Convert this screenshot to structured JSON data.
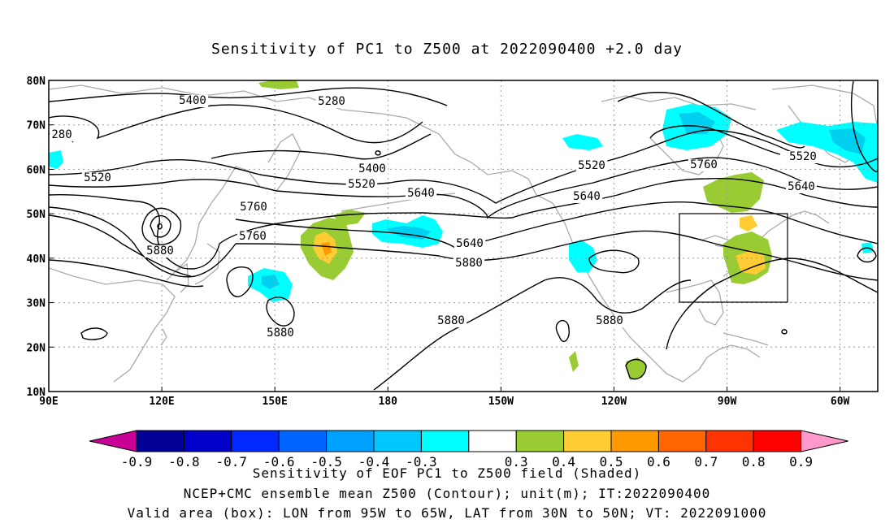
{
  "title": "Sensitivity of PC1 to Z500 at 2022090400 +2.0 day",
  "map": {
    "lon_range": [
      90,
      310
    ],
    "lat_range": [
      10,
      80
    ],
    "x_ticks": [
      "90E",
      "120E",
      "150E",
      "180",
      "150W",
      "120W",
      "90W",
      "60W"
    ],
    "y_ticks": [
      "80N",
      "70N",
      "60N",
      "50N",
      "40N",
      "30N",
      "20N",
      "10N"
    ],
    "grid": "dotted",
    "valid_box": {
      "lon_w": "95W",
      "lon_e": "65W",
      "lat_s": "30N",
      "lat_n": "50N"
    },
    "contour_labels": [
      "5400",
      "5280",
      "280",
      "5520",
      "5400",
      "5520",
      "5640",
      "5520",
      "5760",
      "5640",
      "5760",
      "5880",
      "5640",
      "5760",
      "5880",
      "5880",
      "5880",
      "5880"
    ],
    "colors": {
      "negative_dark": "#00ffff",
      "negative_light": "#00d0f0",
      "positive_green": "#99cc33",
      "positive_yellow": "#ffcc33",
      "positive_orange": "#ff9900",
      "land": "#aaaaaa",
      "contour": "#000000"
    }
  },
  "colorbar": {
    "labels": [
      "-0.9",
      "-0.8",
      "-0.7",
      "-0.6",
      "-0.5",
      "-0.4",
      "-0.3",
      "0.3",
      "0.4",
      "0.5",
      "0.6",
      "0.7",
      "0.8",
      "0.9"
    ],
    "colors": [
      "#c80096",
      "#000096",
      "#0000c8",
      "#0028ff",
      "#0064ff",
      "#00a0ff",
      "#00c8ff",
      "#00ffff",
      "#ffffff",
      "#99cc33",
      "#ffcc33",
      "#ff9900",
      "#ff6600",
      "#ff3300",
      "#ff0000",
      "#ff99cc"
    ]
  },
  "captions": {
    "line1": "Sensitivity of EOF PC1 to Z500 field (Shaded)",
    "line2": "NCEP+CMC ensemble mean Z500 (Contour); unit(m); IT:2022090400",
    "line3": "Valid area (box): LON from 95W to 65W, LAT from 30N to 50N; VT: 2022091000"
  }
}
